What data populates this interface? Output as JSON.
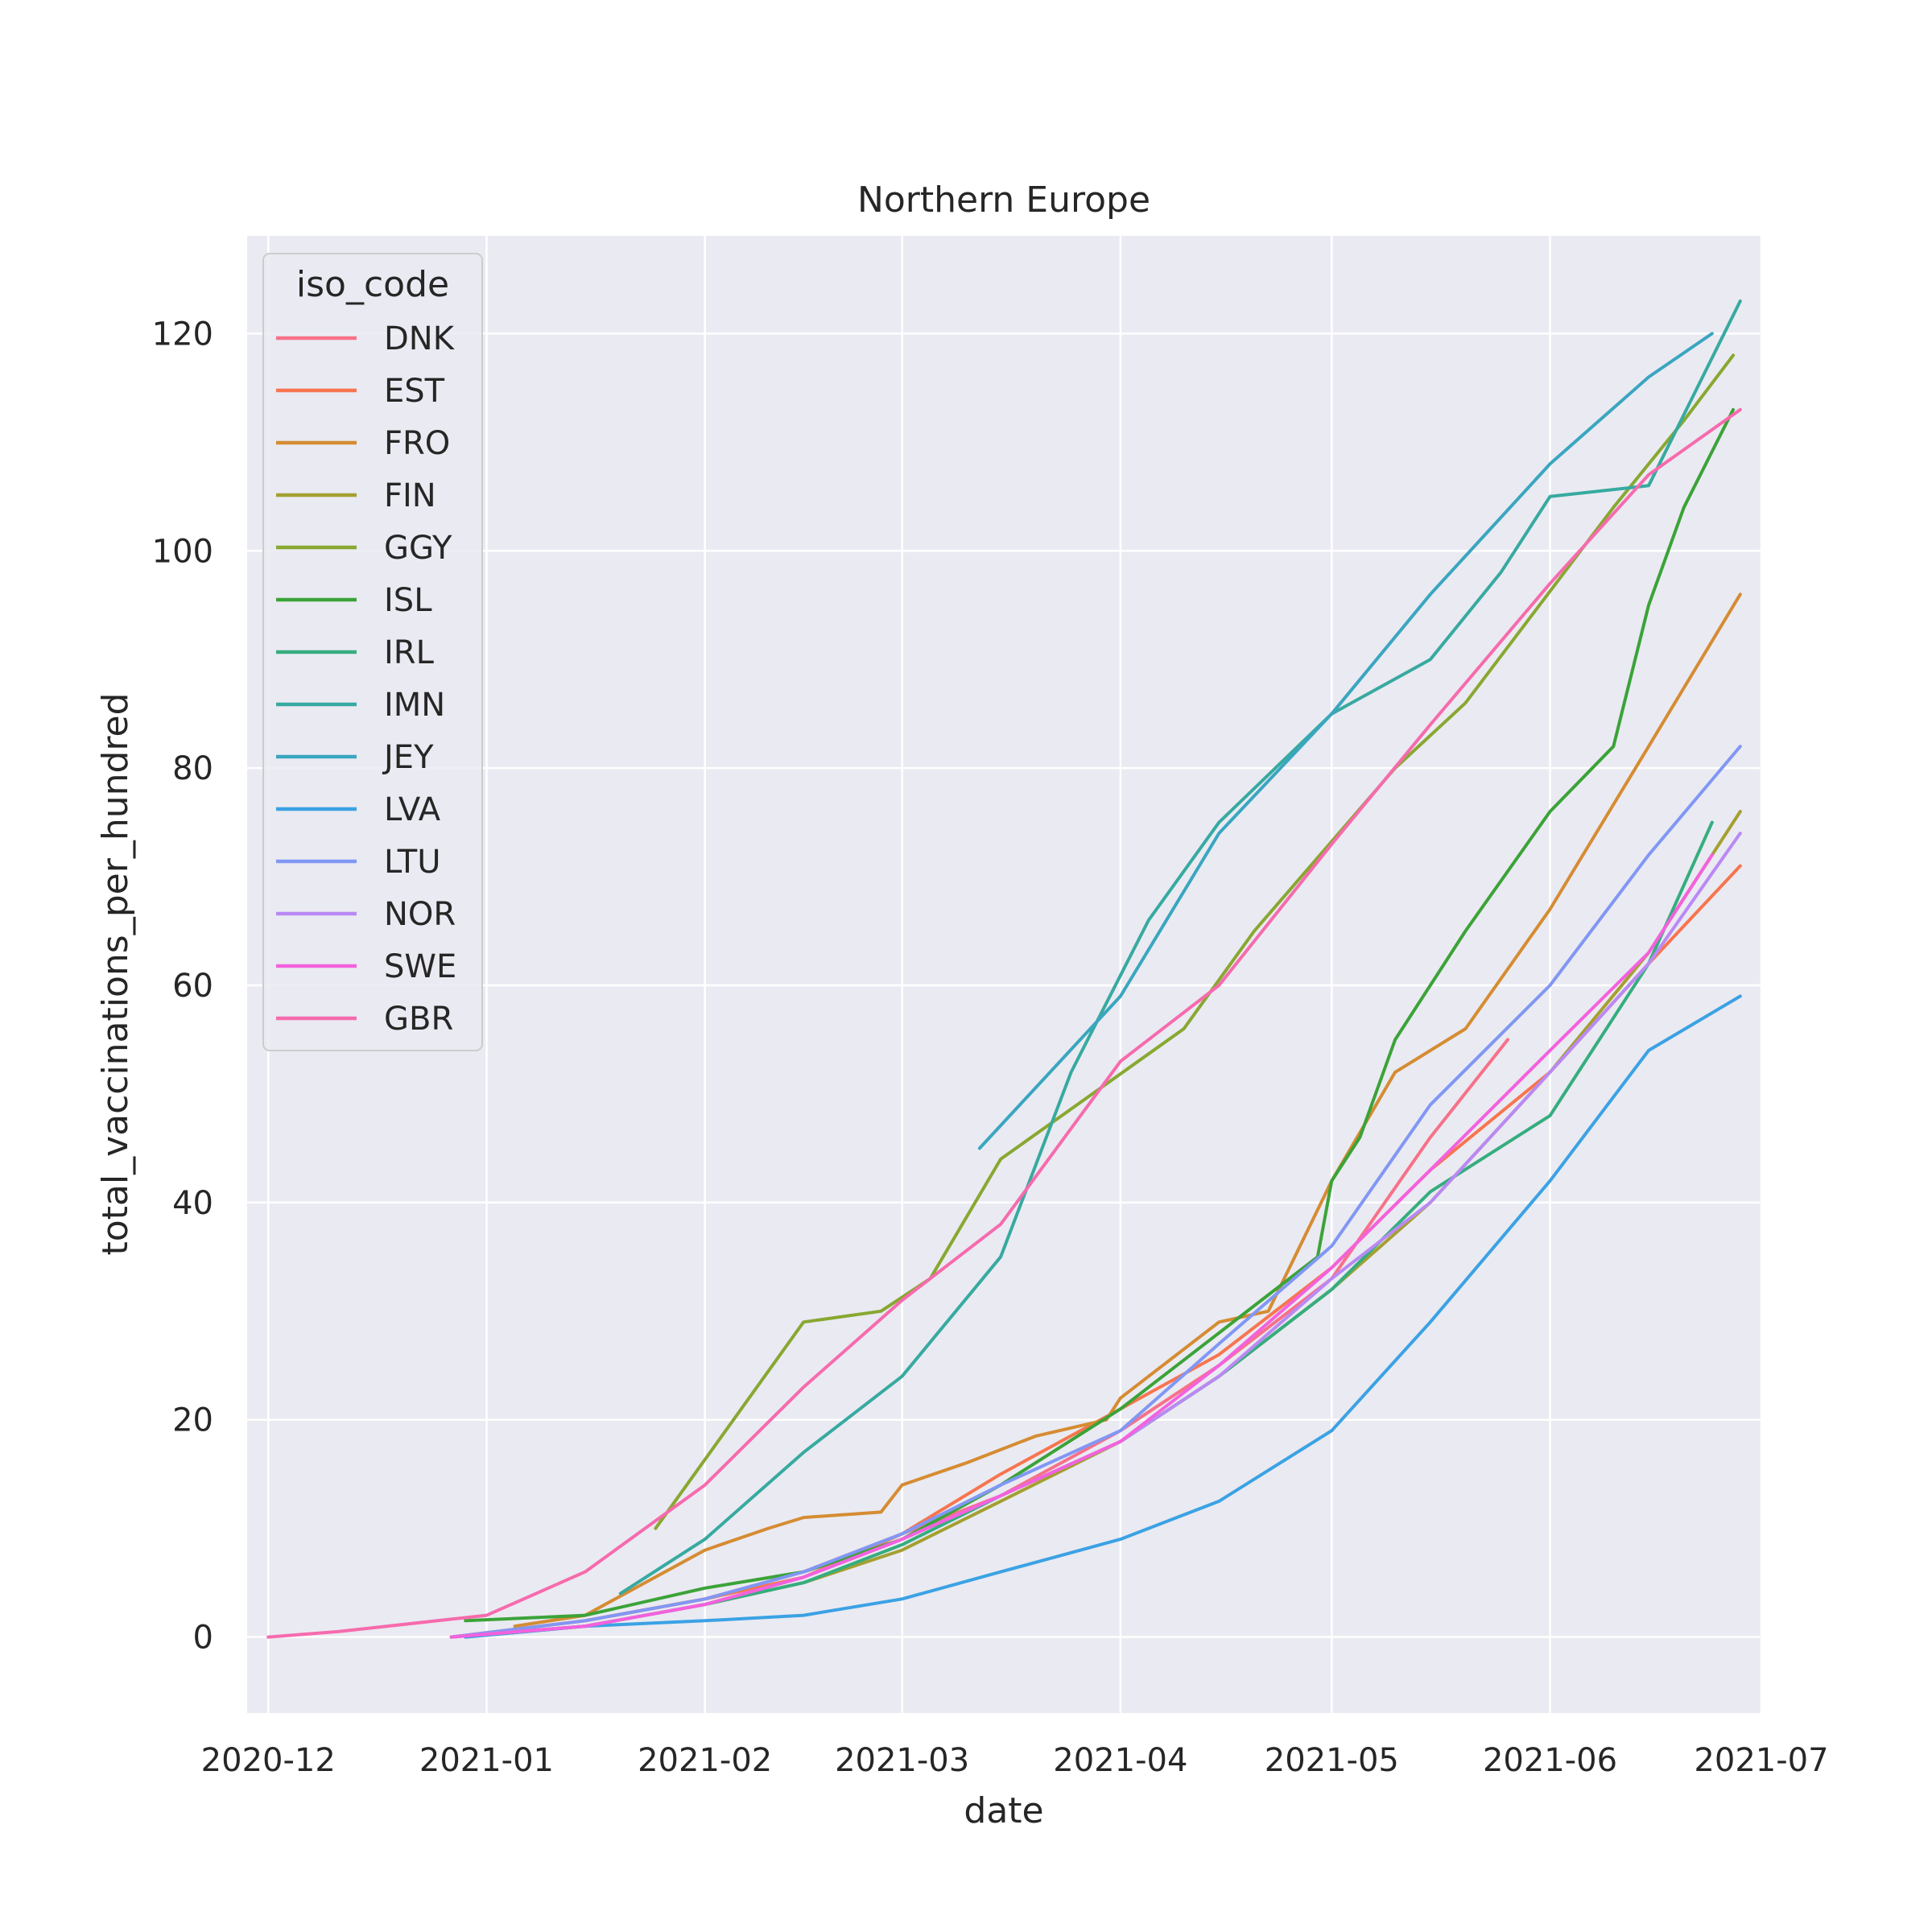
{
  "chart_data": {
    "type": "line",
    "title": "Northern Europe",
    "xlabel": "date",
    "ylabel": "total_vaccinations_per_hundred",
    "xlim": [
      "2020-11-28",
      "2021-07-01"
    ],
    "ylim": [
      -7,
      129
    ],
    "grid": true,
    "legend_placement": "top-left",
    "legend_title": "iso_code",
    "x_ticks": [
      "2020-12",
      "2021-01",
      "2021-02",
      "2021-03",
      "2021-04",
      "2021-05",
      "2021-06",
      "2021-07"
    ],
    "y_ticks": [
      0,
      20,
      40,
      60,
      80,
      100,
      120
    ],
    "series": [
      {
        "name": "DNK",
        "color": "#f77189",
        "points": [
          [
            "2020-12-27",
            0
          ],
          [
            "2021-01-15",
            1.5
          ],
          [
            "2021-02-01",
            3.5
          ],
          [
            "2021-02-15",
            6
          ],
          [
            "2021-03-01",
            9.5
          ],
          [
            "2021-03-15",
            13
          ],
          [
            "2021-04-01",
            19
          ],
          [
            "2021-04-15",
            25
          ],
          [
            "2021-05-01",
            33
          ],
          [
            "2021-05-15",
            46
          ],
          [
            "2021-05-26",
            55
          ]
        ]
      },
      {
        "name": "EST",
        "color": "#f7754f",
        "points": [
          [
            "2020-12-27",
            0
          ],
          [
            "2021-01-15",
            1.5
          ],
          [
            "2021-02-01",
            3.5
          ],
          [
            "2021-02-15",
            5.5
          ],
          [
            "2021-03-01",
            9.5
          ],
          [
            "2021-03-15",
            15
          ],
          [
            "2021-04-01",
            21
          ],
          [
            "2021-04-15",
            26
          ],
          [
            "2021-05-01",
            34
          ],
          [
            "2021-05-15",
            43
          ],
          [
            "2021-06-01",
            52
          ],
          [
            "2021-06-15",
            62
          ],
          [
            "2021-06-28",
            71
          ]
        ]
      },
      {
        "name": "FRO",
        "color": "#d58c32",
        "points": [
          [
            "2021-01-05",
            1
          ],
          [
            "2021-01-15",
            2
          ],
          [
            "2021-02-01",
            8
          ],
          [
            "2021-02-10",
            10
          ],
          [
            "2021-02-15",
            11
          ],
          [
            "2021-02-26",
            11.5
          ],
          [
            "2021-03-01",
            14
          ],
          [
            "2021-03-10",
            16
          ],
          [
            "2021-03-20",
            18.5
          ],
          [
            "2021-03-30",
            20
          ],
          [
            "2021-04-01",
            22
          ],
          [
            "2021-04-15",
            29
          ],
          [
            "2021-04-22",
            30
          ],
          [
            "2021-05-01",
            42
          ],
          [
            "2021-05-10",
            52
          ],
          [
            "2021-05-20",
            56
          ],
          [
            "2021-06-01",
            67
          ],
          [
            "2021-06-15",
            82
          ],
          [
            "2021-06-28",
            96
          ]
        ]
      },
      {
        "name": "FIN",
        "color": "#a4a031",
        "points": [
          [
            "2020-12-27",
            0
          ],
          [
            "2021-01-15",
            1
          ],
          [
            "2021-02-01",
            3
          ],
          [
            "2021-02-15",
            5
          ],
          [
            "2021-03-01",
            8
          ],
          [
            "2021-03-15",
            12.5
          ],
          [
            "2021-04-01",
            18
          ],
          [
            "2021-04-15",
            24
          ],
          [
            "2021-05-01",
            32
          ],
          [
            "2021-05-15",
            40
          ],
          [
            "2021-06-01",
            52
          ],
          [
            "2021-06-15",
            63
          ],
          [
            "2021-06-28",
            76
          ]
        ]
      },
      {
        "name": "GGY",
        "color": "#88a831",
        "points": [
          [
            "2021-01-25",
            10
          ],
          [
            "2021-02-15",
            29
          ],
          [
            "2021-02-26",
            30
          ],
          [
            "2021-03-05",
            33
          ],
          [
            "2021-03-15",
            44
          ],
          [
            "2021-04-10",
            56
          ],
          [
            "2021-04-20",
            65
          ],
          [
            "2021-05-10",
            80
          ],
          [
            "2021-05-20",
            86
          ],
          [
            "2021-06-10",
            104
          ],
          [
            "2021-06-20",
            112
          ],
          [
            "2021-06-27",
            118
          ]
        ]
      },
      {
        "name": "ISL",
        "color": "#3ba338",
        "points": [
          [
            "2020-12-29",
            1.5
          ],
          [
            "2021-01-15",
            2
          ],
          [
            "2021-02-01",
            4.5
          ],
          [
            "2021-02-15",
            6
          ],
          [
            "2021-03-01",
            9
          ],
          [
            "2021-03-15",
            14
          ],
          [
            "2021-04-01",
            21
          ],
          [
            "2021-04-15",
            28
          ],
          [
            "2021-04-29",
            35
          ],
          [
            "2021-05-01",
            42
          ],
          [
            "2021-05-05",
            46
          ],
          [
            "2021-05-10",
            55
          ],
          [
            "2021-05-20",
            65
          ],
          [
            "2021-06-01",
            76
          ],
          [
            "2021-06-10",
            82
          ],
          [
            "2021-06-15",
            95
          ],
          [
            "2021-06-20",
            104
          ],
          [
            "2021-06-27",
            113
          ]
        ]
      },
      {
        "name": "IRL",
        "color": "#36ad7f",
        "points": [
          [
            "2020-12-29",
            0
          ],
          [
            "2021-01-15",
            1
          ],
          [
            "2021-02-01",
            3
          ],
          [
            "2021-02-15",
            5
          ],
          [
            "2021-03-01",
            8.5
          ],
          [
            "2021-03-15",
            13
          ],
          [
            "2021-04-01",
            18
          ],
          [
            "2021-04-15",
            24
          ],
          [
            "2021-05-01",
            32
          ],
          [
            "2021-05-15",
            41
          ],
          [
            "2021-06-01",
            48
          ],
          [
            "2021-06-15",
            62
          ],
          [
            "2021-06-24",
            75
          ]
        ]
      },
      {
        "name": "IMN",
        "color": "#37aaa0",
        "points": [
          [
            "2021-01-20",
            4
          ],
          [
            "2021-02-01",
            9
          ],
          [
            "2021-02-15",
            17
          ],
          [
            "2021-03-01",
            24
          ],
          [
            "2021-03-15",
            35
          ],
          [
            "2021-03-25",
            52
          ],
          [
            "2021-04-05",
            66
          ],
          [
            "2021-04-15",
            75
          ],
          [
            "2021-05-01",
            85
          ],
          [
            "2021-05-15",
            90
          ],
          [
            "2021-05-25",
            98
          ],
          [
            "2021-06-01",
            105
          ],
          [
            "2021-06-15",
            106
          ],
          [
            "2021-06-28",
            123
          ]
        ]
      },
      {
        "name": "JEY",
        "color": "#3aa6c0",
        "points": [
          [
            "2021-03-12",
            45
          ],
          [
            "2021-04-01",
            59
          ],
          [
            "2021-04-15",
            74
          ],
          [
            "2021-05-01",
            85
          ],
          [
            "2021-05-15",
            96
          ],
          [
            "2021-06-01",
            108
          ],
          [
            "2021-06-15",
            116
          ],
          [
            "2021-06-24",
            120
          ]
        ]
      },
      {
        "name": "LVA",
        "color": "#3ba2e4",
        "points": [
          [
            "2020-12-29",
            0
          ],
          [
            "2021-01-15",
            1
          ],
          [
            "2021-02-01",
            1.5
          ],
          [
            "2021-02-15",
            2
          ],
          [
            "2021-03-01",
            3.5
          ],
          [
            "2021-03-15",
            6
          ],
          [
            "2021-04-01",
            9
          ],
          [
            "2021-04-15",
            12.5
          ],
          [
            "2021-05-01",
            19
          ],
          [
            "2021-05-15",
            29
          ],
          [
            "2021-06-01",
            42
          ],
          [
            "2021-06-15",
            54
          ],
          [
            "2021-06-28",
            59
          ]
        ]
      },
      {
        "name": "LTU",
        "color": "#8197f4",
        "points": [
          [
            "2020-12-27",
            0
          ],
          [
            "2021-01-15",
            1.5
          ],
          [
            "2021-02-01",
            3.5
          ],
          [
            "2021-02-15",
            6
          ],
          [
            "2021-03-01",
            9.5
          ],
          [
            "2021-03-15",
            14
          ],
          [
            "2021-04-01",
            19
          ],
          [
            "2021-04-15",
            27
          ],
          [
            "2021-05-01",
            36
          ],
          [
            "2021-05-15",
            49
          ],
          [
            "2021-06-01",
            60
          ],
          [
            "2021-06-15",
            72
          ],
          [
            "2021-06-28",
            82
          ]
        ]
      },
      {
        "name": "NOR",
        "color": "#ba89f4",
        "points": [
          [
            "2020-12-27",
            0
          ],
          [
            "2021-01-15",
            1
          ],
          [
            "2021-02-01",
            3
          ],
          [
            "2021-02-15",
            5.5
          ],
          [
            "2021-03-01",
            9
          ],
          [
            "2021-03-15",
            13
          ],
          [
            "2021-04-01",
            18
          ],
          [
            "2021-04-15",
            24
          ],
          [
            "2021-05-01",
            33
          ],
          [
            "2021-05-15",
            40
          ],
          [
            "2021-06-01",
            52
          ],
          [
            "2021-06-15",
            62
          ],
          [
            "2021-06-28",
            74
          ]
        ]
      },
      {
        "name": "SWE",
        "color": "#f461dd",
        "points": [
          [
            "2020-12-27",
            0
          ],
          [
            "2021-01-15",
            1
          ],
          [
            "2021-02-01",
            3
          ],
          [
            "2021-02-15",
            5.5
          ],
          [
            "2021-03-01",
            9
          ],
          [
            "2021-03-15",
            13
          ],
          [
            "2021-04-01",
            18
          ],
          [
            "2021-04-15",
            25
          ],
          [
            "2021-05-01",
            34
          ],
          [
            "2021-05-15",
            43
          ],
          [
            "2021-06-01",
            54
          ],
          [
            "2021-06-15",
            63
          ],
          [
            "2021-06-24",
            72
          ]
        ]
      },
      {
        "name": "GBR",
        "color": "#f66bad",
        "points": [
          [
            "2020-12-01",
            0
          ],
          [
            "2020-12-11",
            0.5
          ],
          [
            "2020-12-25",
            1.5
          ],
          [
            "2021-01-01",
            2
          ],
          [
            "2021-01-15",
            6
          ],
          [
            "2021-02-01",
            14
          ],
          [
            "2021-02-15",
            23
          ],
          [
            "2021-03-01",
            31
          ],
          [
            "2021-03-15",
            38
          ],
          [
            "2021-04-01",
            53
          ],
          [
            "2021-04-15",
            60
          ],
          [
            "2021-05-01",
            73
          ],
          [
            "2021-05-15",
            84
          ],
          [
            "2021-06-01",
            97
          ],
          [
            "2021-06-15",
            107
          ],
          [
            "2021-06-28",
            113
          ]
        ]
      }
    ]
  }
}
